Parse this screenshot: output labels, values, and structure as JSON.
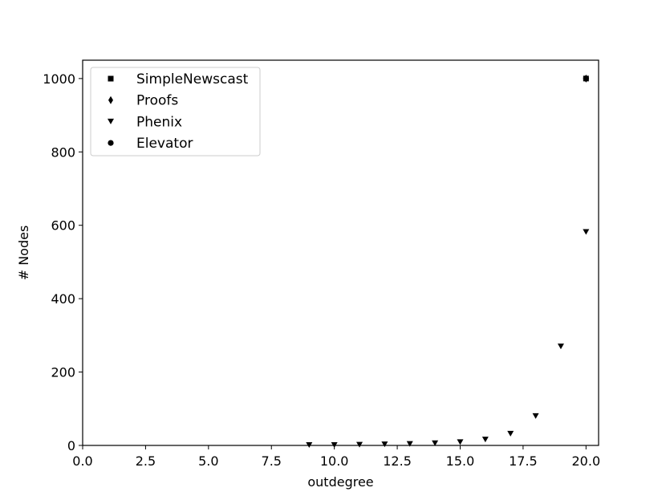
{
  "chart_data": {
    "type": "scatter",
    "xlabel": "outdegree",
    "ylabel": "# Nodes",
    "xlim": [
      0,
      20.5
    ],
    "ylim": [
      0,
      1050
    ],
    "xticks": [
      0.0,
      2.5,
      5.0,
      7.5,
      10.0,
      12.5,
      15.0,
      17.5,
      20.0
    ],
    "xtick_labels": [
      "0.0",
      "2.5",
      "5.0",
      "7.5",
      "10.0",
      "12.5",
      "15.0",
      "17.5",
      "20.0"
    ],
    "yticks": [
      0,
      200,
      400,
      600,
      800,
      1000
    ],
    "ytick_labels": [
      "0",
      "200",
      "400",
      "600",
      "800",
      "1000"
    ],
    "grid": false,
    "legend_position": "top-left",
    "series": [
      {
        "name": "SimpleNewscast",
        "marker": "square",
        "points": [
          [
            20,
            1000
          ]
        ]
      },
      {
        "name": "Proofs",
        "marker": "diamond",
        "points": [
          [
            20,
            1000
          ]
        ]
      },
      {
        "name": "Phenix",
        "marker": "triangle-down",
        "points": [
          [
            9,
            1
          ],
          [
            10,
            1
          ],
          [
            11,
            2
          ],
          [
            12,
            3
          ],
          [
            13,
            4
          ],
          [
            14,
            6
          ],
          [
            15,
            9
          ],
          [
            16,
            16
          ],
          [
            17,
            32
          ],
          [
            18,
            80
          ],
          [
            19,
            270
          ],
          [
            20,
            582
          ]
        ]
      },
      {
        "name": "Elevator",
        "marker": "circle",
        "points": [
          [
            20,
            1000
          ]
        ]
      }
    ],
    "colors": {
      "marker": "#000000",
      "axes": "#000000",
      "legend_border": "#cccccc"
    }
  }
}
